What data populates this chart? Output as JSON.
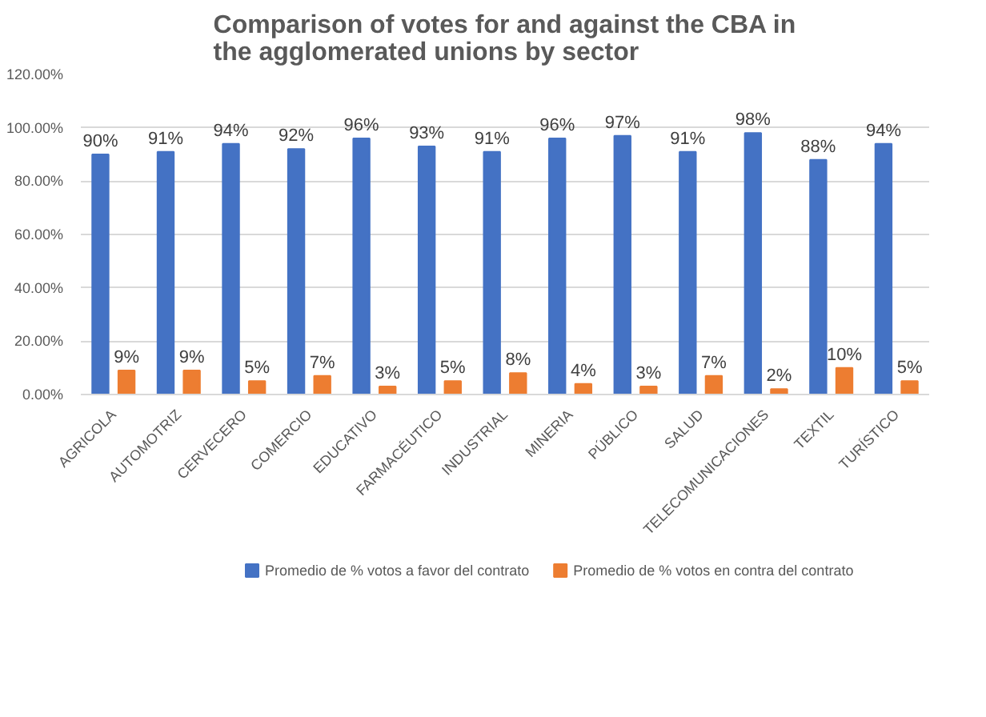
{
  "chart_data": {
    "type": "bar",
    "title": "Comparison of votes for and against the CBA in the agglomerated unions by sector",
    "categories": [
      "AGRICOLA",
      "AUTOMOTRIZ",
      "CERVECERO",
      "COMERCIO",
      "EDUCATIVO",
      "FARMACÉUTICO",
      "INDUSTRIAL",
      "MINERIA",
      "PÚBLICO",
      "SALUD",
      "TELECOMUNICACIONES",
      "TEXTIL",
      "TURÍSTICO"
    ],
    "series": [
      {
        "name": "Promedio de % votos a favor del contrato",
        "color": "#4472c4",
        "values": [
          90,
          91,
          94,
          92,
          96,
          93,
          91,
          96,
          97,
          91,
          98,
          88,
          94
        ],
        "value_labels": [
          "90%",
          "91%",
          "94%",
          "92%",
          "96%",
          "93%",
          "91%",
          "96%",
          "97%",
          "91%",
          "98%",
          "88%",
          "94%"
        ]
      },
      {
        "name": "Promedio de % votos en contra del contrato",
        "color": "#ed7d31",
        "values": [
          9,
          9,
          5,
          7,
          3,
          5,
          8,
          4,
          3,
          7,
          2,
          10,
          5
        ],
        "value_labels": [
          "9%",
          "9%",
          "5%",
          "7%",
          "3%",
          "5%",
          "8%",
          "4%",
          "3%",
          "7%",
          "2%",
          "10%",
          "5%"
        ]
      }
    ],
    "ylim": [
      0,
      120
    ],
    "yticks": [
      {
        "value": 0,
        "label": "0.00%"
      },
      {
        "value": 20,
        "label": "20.00%"
      },
      {
        "value": 40,
        "label": "40.00%"
      },
      {
        "value": 60,
        "label": "60.00%"
      },
      {
        "value": 80,
        "label": "80.00%"
      },
      {
        "value": 100,
        "label": "100.00%"
      },
      {
        "value": 120,
        "label": "120.00%"
      }
    ],
    "grid": "y",
    "legend": "bottom"
  }
}
